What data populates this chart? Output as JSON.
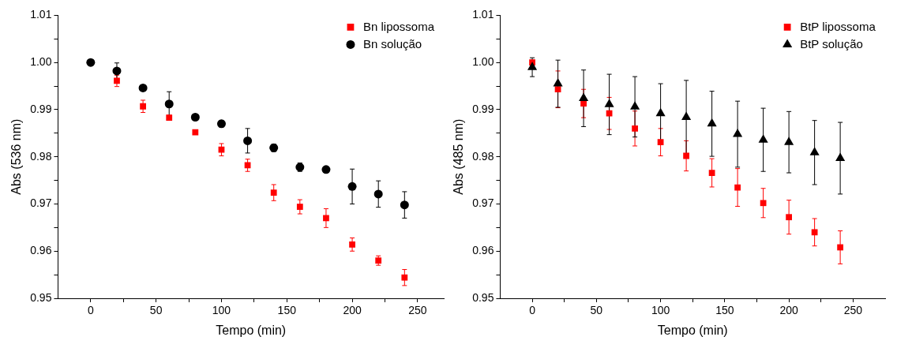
{
  "chart_data": [
    {
      "type": "scatter",
      "xlabel": "Tempo (min)",
      "ylabel": "Abs (536 nm)",
      "xlim": [
        -25,
        270
      ],
      "ylim": [
        0.95,
        1.01
      ],
      "xticks": [
        0,
        {
          "value": 25,
          "label": null
        },
        50,
        {
          "value": 75,
          "label": null
        },
        100,
        {
          "value": 125,
          "label": null
        },
        150,
        {
          "value": 175,
          "label": null
        },
        200,
        {
          "value": 225,
          "label": null
        },
        250
      ],
      "yticks": [
        {
          "value": 0.95,
          "label": "0.95"
        },
        {
          "value": 0.955,
          "label": null
        },
        {
          "value": 0.96,
          "label": "0.96"
        },
        {
          "value": 0.965,
          "label": null
        },
        {
          "value": 0.97,
          "label": "0.97"
        },
        {
          "value": 0.975,
          "label": null
        },
        {
          "value": 0.98,
          "label": "0.98"
        },
        {
          "value": 0.985,
          "label": null
        },
        {
          "value": 0.99,
          "label": "0.99"
        },
        {
          "value": 0.995,
          "label": null
        },
        {
          "value": 1.0,
          "label": "1.00"
        },
        {
          "value": 1.005,
          "label": null
        },
        {
          "value": 1.01,
          "label": "1.01"
        }
      ],
      "grid": false,
      "legend": "top right",
      "x": [
        0,
        20,
        40,
        60,
        80,
        100,
        120,
        140,
        160,
        180,
        200,
        220,
        240
      ],
      "series": [
        {
          "name": "Bn lipossoma",
          "color": "#ff0000",
          "marker": "square",
          "values": [
            null,
            0.9961,
            0.9907,
            0.9883,
            0.9852,
            0.9815,
            0.9782,
            0.9724,
            0.9694,
            0.967,
            0.9614,
            0.958,
            0.9544
          ],
          "errors": [
            null,
            0.0012,
            0.0013,
            0.0005,
            0.0003,
            0.0013,
            0.0013,
            0.0017,
            0.0015,
            0.002,
            0.0014,
            0.001,
            0.0017
          ]
        },
        {
          "name": "Bn solução",
          "color": "#000000",
          "marker": "circle",
          "values": [
            1.0,
            0.9982,
            0.9946,
            0.9912,
            0.9884,
            0.987,
            0.9834,
            0.9819,
            0.9778,
            0.9773,
            0.9737,
            0.9721,
            0.9698
          ],
          "errors": [
            null,
            0.0017,
            null,
            0.0026,
            null,
            0.0007,
            0.0026,
            0.0008,
            0.0009,
            null,
            0.0037,
            0.0028,
            0.0028
          ]
        }
      ]
    },
    {
      "type": "scatter",
      "xlabel": "Tempo (min)",
      "ylabel": "Abs (485 nm)",
      "xlim": [
        -25,
        275
      ],
      "ylim": [
        0.95,
        1.01
      ],
      "xticks": [
        0,
        {
          "value": 25,
          "label": null
        },
        50,
        {
          "value": 75,
          "label": null
        },
        100,
        {
          "value": 125,
          "label": null
        },
        150,
        {
          "value": 175,
          "label": null
        },
        200,
        {
          "value": 225,
          "label": null
        },
        250
      ],
      "yticks": [
        {
          "value": 0.95,
          "label": "0.95"
        },
        {
          "value": 0.955,
          "label": null
        },
        {
          "value": 0.96,
          "label": "0.96"
        },
        {
          "value": 0.965,
          "label": null
        },
        {
          "value": 0.97,
          "label": "0.97"
        },
        {
          "value": 0.975,
          "label": null
        },
        {
          "value": 0.98,
          "label": "0.98"
        },
        {
          "value": 0.985,
          "label": null
        },
        {
          "value": 0.99,
          "label": "0.99"
        },
        {
          "value": 0.995,
          "label": null
        },
        {
          "value": 1.0,
          "label": "1.00"
        },
        {
          "value": 1.005,
          "label": null
        },
        {
          "value": 1.01,
          "label": "1.01"
        }
      ],
      "grid": false,
      "legend": "top right",
      "x": [
        0,
        20,
        40,
        60,
        80,
        100,
        120,
        140,
        160,
        180,
        200,
        220,
        240
      ],
      "series": [
        {
          "name": "BtP lipossoma",
          "color": "#ff0000",
          "marker": "square",
          "values": [
            1.0,
            0.9943,
            0.9913,
            0.9892,
            0.986,
            0.9831,
            0.9802,
            0.9766,
            0.9735,
            0.9702,
            0.9672,
            0.964,
            0.9608
          ],
          "errors": [
            0.0005,
            0.0039,
            0.003,
            0.0034,
            0.0037,
            0.0029,
            0.0032,
            0.003,
            0.004,
            0.0031,
            0.0036,
            0.0029,
            0.0035
          ]
        },
        {
          "name": "BtP solução",
          "color": "#000000",
          "marker": "triangle",
          "values": [
            0.999,
            0.9955,
            0.9924,
            0.9911,
            0.9906,
            0.9892,
            0.9884,
            0.987,
            0.9848,
            0.9836,
            0.9831,
            0.9809,
            0.9797
          ],
          "errors": [
            0.002,
            0.005,
            0.006,
            0.0064,
            0.0064,
            0.0063,
            0.0078,
            0.0069,
            0.007,
            0.0067,
            0.0065,
            0.0068,
            0.0076
          ]
        }
      ]
    }
  ]
}
